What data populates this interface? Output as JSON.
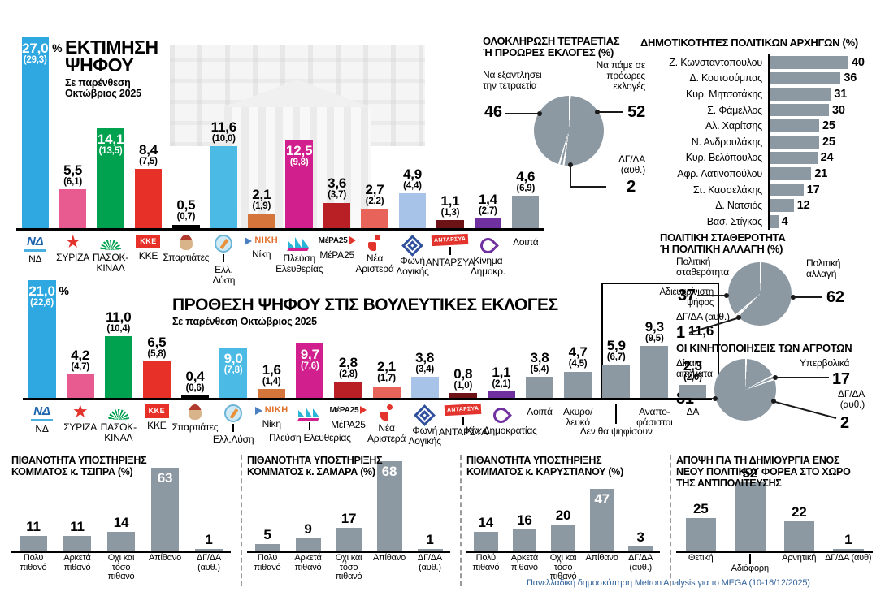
{
  "percent_sign": "%",
  "footer": "Πανελλαδική δημοσκόπηση Metron Analysis για το MEGA (10-16/12/2025)",
  "colors": {
    "gray": "#8c98a2",
    "axis": "#000000"
  },
  "chart_data": [
    {
      "id": "vote-estimate",
      "type": "bar",
      "title": "ΕΚΤΙΜΗΣΗ ΨΗΦΟΥ",
      "subtitle": "Σε παρένθεση Οκτώβριος 2025",
      "series": [
        {
          "key": "nd",
          "label": "ΝΔ",
          "value": "27,0",
          "prev": "(29,3)",
          "num": 27.0,
          "color": "#2fa8e1",
          "inside": true,
          "pct": true,
          "logo": "nd"
        },
        {
          "key": "syriza",
          "label": "ΣΥΡΙΖΑ",
          "value": "5,5",
          "prev": "(6,1)",
          "num": 5.5,
          "color": "#e75b90",
          "logo": "syriza"
        },
        {
          "key": "pasok",
          "label": "ΠΑΣΟΚ- ΚΙΝΑΛ",
          "value": "14,1",
          "prev": "(13,5)",
          "num": 14.1,
          "color": "#00a14f",
          "inside": true,
          "logo": "pasok"
        },
        {
          "key": "kke",
          "label": "ΚΚΕ",
          "value": "8,4",
          "prev": "(7,5)",
          "num": 8.4,
          "color": "#e73028",
          "logo": "kke"
        },
        {
          "key": "spartiates",
          "label": "Σπαρτιάτες",
          "value": "0,5",
          "prev": "(0,7)",
          "num": 0.5,
          "color": "#000000",
          "logo": "spartiates"
        },
        {
          "key": "ellysi",
          "label": "Ελλ. Λύση",
          "value": "11,6",
          "prev": "(10,0)",
          "num": 11.6,
          "color": "#4bbbe5",
          "logo": "ellysi",
          "drop": true
        },
        {
          "key": "niki",
          "label": "Νίκη",
          "value": "2,1",
          "prev": "(1,9)",
          "num": 2.1,
          "color": "#d4763b",
          "logo": "niki"
        },
        {
          "key": "plefsi",
          "label": "Πλεύση Ελευθερίας",
          "value": "12,5",
          "prev": "(9,8)",
          "num": 12.5,
          "color": "#d21f8e",
          "inside": true,
          "logo": "plefsi"
        },
        {
          "key": "mera25",
          "label": "ΜέΡΑ25",
          "value": "3,6",
          "prev": "(3,7)",
          "num": 3.6,
          "color": "#b92025",
          "logo": "mera25"
        },
        {
          "key": "nearistera",
          "label": "Νέα Αριστερά",
          "value": "2,7",
          "prev": "(2,2)",
          "num": 2.7,
          "color": "#e8635a",
          "logo": "nearistera"
        },
        {
          "key": "foni",
          "label": "Φωνή Λογικής",
          "value": "4,9",
          "prev": "(4,4)",
          "num": 4.9,
          "color": "#a7c4e8",
          "logo": "foni"
        },
        {
          "key": "antarsya",
          "label": "ΑΝΤΑΡΣΥΑ",
          "value": "1,1",
          "prev": "(1,3)",
          "num": 1.1,
          "color": "#6d1216",
          "logo": "antarsya",
          "drop": true
        },
        {
          "key": "kinima",
          "label": "Κίνημα Δημοκρ.",
          "value": "1,4",
          "prev": "(2,7)",
          "num": 1.4,
          "color": "#7030a0",
          "logo": "kinima"
        },
        {
          "key": "loipa",
          "label": "Λοιπά",
          "value": "4,6",
          "prev": "(6,9)",
          "num": 4.6,
          "color": "#8c98a2"
        }
      ]
    },
    {
      "id": "four-year-or-early-elections",
      "type": "pie",
      "title_lines": [
        "ΟΛΟΚΛΗΡΩΣΗ ΤΕΤΡΑΕΤΙΑΣ",
        "Ή ΠΡΟΩΡΕΣ ΕΚΛΟΓΕΣ (%)"
      ],
      "slices": [
        {
          "label": "Να πάμε σε πρόωρες εκλογές",
          "value": 52
        },
        {
          "label": "ΔΓ/ΔΑ (αυθ.)",
          "value": 2
        },
        {
          "label": "Να εξαντλήσει την τετραετία",
          "value": 46
        }
      ]
    },
    {
      "id": "leader-popularity",
      "type": "bar",
      "orientation": "horizontal",
      "title": "ΔΗΜΟΤΙΚΟΤΗΤΕΣ ΠΟΛΙΤΙΚΩΝ ΑΡΧΗΓΩΝ (%)",
      "categories": [
        "Ζ. Κωνσταντοπούλου",
        "Δ. Κουτσούμπας",
        "Κυρ. Μητσοτάκης",
        "Σ. Φάμελλος",
        "Αλ. Χαρίτσης",
        "Ν. Ανδρουλάκης",
        "Κυρ. Βελόπουλος",
        "Αφρ. Λατινοπούλου",
        "Στ. Κασσελάκης",
        "Δ. Νατσιός",
        "Βασ. Στίγκας"
      ],
      "values": [
        40,
        36,
        31,
        30,
        25,
        25,
        24,
        21,
        17,
        12,
        4
      ]
    },
    {
      "id": "stability-or-change",
      "type": "pie",
      "title_lines": [
        "ΠΟΛΙΤΙΚΗ ΣΤΑΘΕΡΟΤΗΤΑ",
        "Ή ΠΟΛΙΤΙΚΗ ΑΛΛΑΓΗ  (%)"
      ],
      "slices": [
        {
          "label": "Πολιτική αλλαγή",
          "value": 62
        },
        {
          "label": "ΔΓ/ΔΑ (αυθ.)",
          "value": 1
        },
        {
          "label": "Πολιτική σταθερότητα",
          "value": 37
        }
      ]
    },
    {
      "id": "farmers-protests",
      "type": "pie",
      "title": "ΟΙ ΚΙΝΗΤΟΠΟΙΗΣΕΙΣ ΤΩΝ ΑΓΡΟΤΩΝ",
      "slices": [
        {
          "label": "Υπερβολικά",
          "value": 17
        },
        {
          "label": "ΔΓ/ΔΑ (αυθ.)",
          "value": 2
        },
        {
          "label": "Δίκαια αιτήματα",
          "value": 81
        }
      ]
    },
    {
      "id": "vote-intention",
      "type": "bar",
      "title": "ΠΡΟΘΕΣΗ ΨΗΦΟΥ ΣΤΙΣ ΒΟΥΛΕΥΤΙΚΕΣ ΕΚΛΟΓΕΣ",
      "subtitle": "Σε παρένθεση Οκτώβριος 2025",
      "bracket": {
        "label": "Αδιευκρίνιστη ψήφος",
        "value": "11,6"
      },
      "series": [
        {
          "key": "nd",
          "label": "ΝΔ",
          "value": "21,0",
          "prev": "(22,6)",
          "num": 21.0,
          "color": "#2fa8e1",
          "inside": true,
          "pct": true,
          "logo": "nd"
        },
        {
          "key": "syriza",
          "label": "ΣΥΡΙΖΑ",
          "value": "4,2",
          "prev": "(4,7)",
          "num": 4.2,
          "color": "#e75b90",
          "logo": "syriza"
        },
        {
          "key": "pasok",
          "label": "ΠΑΣΟΚ- ΚΙΝΑΛ",
          "value": "11,0",
          "prev": "(10,4)",
          "num": 11.0,
          "color": "#00a14f",
          "logo": "pasok"
        },
        {
          "key": "kke",
          "label": "ΚΚΕ",
          "value": "6,5",
          "prev": "(5,8)",
          "num": 6.5,
          "color": "#e73028",
          "logo": "kke"
        },
        {
          "key": "spartiates",
          "label": "Σπαρτιάτες",
          "value": "0,4",
          "prev": "(0,6)",
          "num": 0.4,
          "color": "#000000",
          "logo": "spartiates"
        },
        {
          "key": "ellysi",
          "label": "Ελλ.Λύση",
          "value": "9,0",
          "prev": "(7,8)",
          "num": 9.0,
          "color": "#4bbbe5",
          "inside": true,
          "logo": "ellysi",
          "drop": true
        },
        {
          "key": "niki",
          "label": "Νίκη",
          "value": "1,6",
          "prev": "(1,4)",
          "num": 1.6,
          "color": "#d4763b",
          "logo": "niki"
        },
        {
          "key": "plefsi",
          "label": "Πλεύση Ελευθερίας",
          "value": "9,7",
          "prev": "(7,6)",
          "num": 9.7,
          "color": "#d21f8e",
          "inside": true,
          "logo": "plefsi",
          "drop": true,
          "nowrap": true
        },
        {
          "key": "mera25",
          "label": "ΜέΡΑ25",
          "value": "2,8",
          "prev": "(2,8)",
          "num": 2.8,
          "color": "#b92025",
          "logo": "mera25"
        },
        {
          "key": "nearistera",
          "label": "Νέα Αριστερά",
          "value": "2,1",
          "prev": "(1,7)",
          "num": 2.1,
          "color": "#e8635a",
          "logo": "nearistera"
        },
        {
          "key": "foni",
          "label": "Φωνή Λογικής",
          "value": "3,8",
          "prev": "(3,4)",
          "num": 3.8,
          "color": "#a7c4e8",
          "logo": "foni"
        },
        {
          "key": "antarsya",
          "label": "ΑΝΤΑΡΣΥΑ",
          "value": "0,8",
          "prev": "(1,0)",
          "num": 0.8,
          "color": "#6d1216",
          "logo": "antarsya",
          "drop": true
        },
        {
          "key": "kinima",
          "label": "Κίν. Δημοκρατίας",
          "value": "1,1",
          "prev": "(2,1)",
          "num": 1.1,
          "color": "#7030a0",
          "logo": "kinima",
          "nowrap": true
        },
        {
          "key": "loipa",
          "label": "Λοιπά",
          "value": "3,8",
          "prev": "(5,4)",
          "num": 3.8,
          "color": "#8c98a2"
        },
        {
          "key": "akyro",
          "label": "Ακυρο/ λευκό",
          "value": "4,7",
          "prev": "(4,5)",
          "num": 4.7,
          "color": "#8c98a2"
        },
        {
          "key": "denpsi",
          "label": "Δεν θα ψηφίσουν",
          "value": "5,9",
          "prev": "(6,7)",
          "num": 5.9,
          "color": "#8c98a2",
          "drop": true,
          "longtick": true,
          "nowrap": true
        },
        {
          "key": "anapof",
          "label": "Αναπο- φάσιστοι",
          "value": "9,3",
          "prev": "(9,5)",
          "num": 9.3,
          "color": "#8c98a2"
        },
        {
          "key": "da",
          "label": "ΔΑ",
          "value": "2,3",
          "prev": "(2,0)",
          "num": 2.3,
          "color": "#8c98a2"
        }
      ]
    },
    {
      "id": "tsipras-party-support",
      "type": "bar",
      "title": "ΠΙΘΑΝΟΤΗΤΑ ΥΠΟΣΤΗΡΙΞΗΣ ΚΟΜΜΑΤΟΣ κ. ΤΣΙΠΡΑ (%)",
      "categories": [
        "Πολύ πιθανό",
        "Αρκετά πιθανό",
        "Οχι και τόσο πιθανό",
        "Απίθανο",
        "ΔΓ/ΔΑ (αυθ.)"
      ],
      "values": [
        11,
        11,
        14,
        63,
        1
      ],
      "inside": [
        false,
        false,
        false,
        true,
        false
      ]
    },
    {
      "id": "samaras-party-support",
      "type": "bar",
      "title": "ΠΙΘΑΝΟΤΗΤΑ ΥΠΟΣΤΗΡΙΞΗΣ ΚΟΜΜΑΤΟΣ κ. ΣΑΜΑΡΑ (%)",
      "categories": [
        "Πολύ πιθανό",
        "Αρκετά πιθανό",
        "Οχι και τόσο πιθανό",
        "Απίθανο",
        "ΔΓ/ΔΑ (αυθ.)"
      ],
      "values": [
        5,
        9,
        17,
        68,
        1
      ],
      "inside": [
        false,
        false,
        false,
        true,
        false
      ]
    },
    {
      "id": "karystianou-party-support",
      "type": "bar",
      "title": "ΠΙΘΑΝΟΤΗΤΑ ΥΠΟΣΤΗΡΙΞΗΣ ΚΟΜΜΑΤΟΣ κ. ΚΑΡΥΣΤΙΑΝΟΥ (%)",
      "categories": [
        "Πολύ πιθανό",
        "Αρκετά πιθανό",
        "Οχι και τόσο πιθανό",
        "Απίθανο",
        "ΔΓ/ΔΑ (αυθ.)"
      ],
      "values": [
        14,
        16,
        20,
        47,
        3
      ],
      "inside": [
        false,
        false,
        false,
        true,
        false
      ]
    },
    {
      "id": "new-opposition-party-opinion",
      "type": "bar",
      "title": "ΑΠΟΨΗ ΓΙΑ ΤΗ ΔΗΜΙΟΥΡΓΙΑ ΕΝΟΣ ΝΕΟΥ ΠΟΛΙΤΙΚΟΥ ΦΟΡΕΑ ΣΤΟ ΧΩΡΟ ΤΗΣ ΑΝΤΙΠΟΛΙΤΕΥΣΗΣ",
      "categories": [
        "Θετική",
        "Αδιάφορη",
        "Αρνητική",
        "ΔΓ/ΔΑ (αυθ)"
      ],
      "values": [
        25,
        52,
        22,
        1
      ],
      "inside": [
        false,
        false,
        false,
        false
      ],
      "drop_index": 1
    }
  ]
}
